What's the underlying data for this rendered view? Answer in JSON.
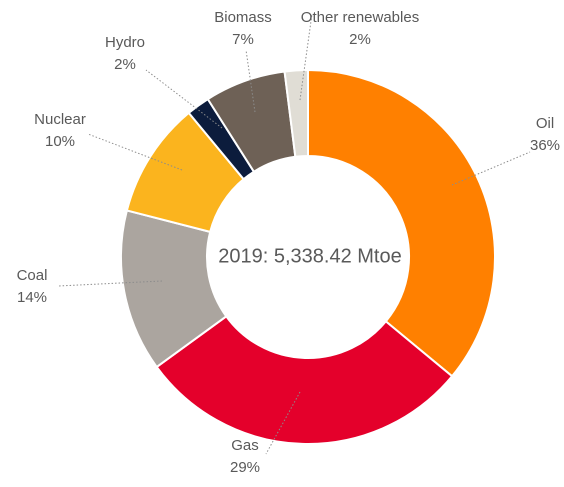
{
  "chart_data": {
    "type": "donut",
    "center_label": "2019: 5,338.42 Mtoe",
    "categories": [
      "Oil",
      "Gas",
      "Coal",
      "Nuclear",
      "Hydro",
      "Biomass",
      "Other renewables"
    ],
    "values": [
      36,
      29,
      14,
      10,
      2,
      7,
      2
    ],
    "value_labels": [
      "36%",
      "29%",
      "14%",
      "10%",
      "2%",
      "7%",
      "2%"
    ],
    "colors": [
      "#ff8000",
      "#e4002b",
      "#aba59f",
      "#fbb41e",
      "#0c1c3c",
      "#6e6156",
      "#e0ddd5"
    ]
  }
}
